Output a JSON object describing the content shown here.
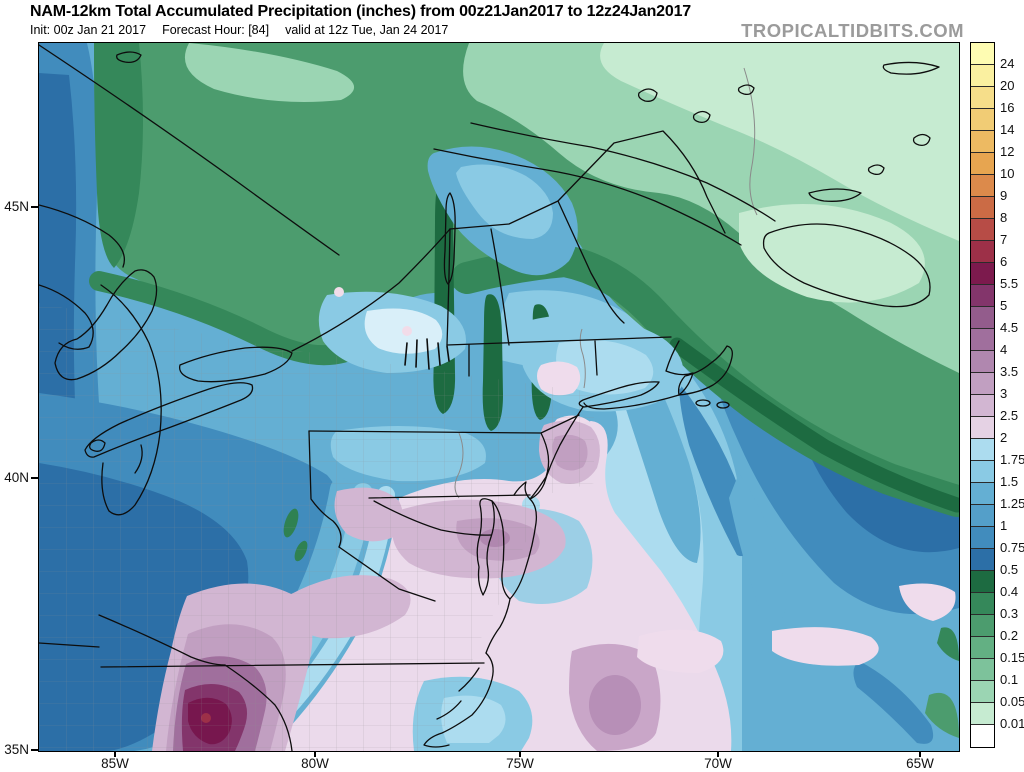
{
  "header": {
    "title": "NAM-12km Total Accumulated Precipitation (inches) from 00z21Jan2017 to 12z24Jan2017",
    "init": "Init: 00z Jan 21 2017",
    "forecast_hour": "Forecast Hour: [84]",
    "valid": "valid at 12z Tue, Jan 24 2017",
    "watermark": "TROPICALTIDBITS.COM"
  },
  "colorbar": {
    "units": "inches",
    "boundary_labels": [
      "24",
      "20",
      "16",
      "14",
      "12",
      "10",
      "9",
      "8",
      "7",
      "6",
      "5.5",
      "5",
      "4.5",
      "4",
      "3.5",
      "3",
      "2.5",
      "2",
      "1.75",
      "1.5",
      "1.25",
      "1",
      "0.75",
      "0.5",
      "0.4",
      "0.3",
      "0.2",
      "0.15",
      "0.1",
      "0.05",
      "0.01"
    ],
    "cell_colors": [
      "#FEFCB2",
      "#FAF0A0",
      "#F6DE8A",
      "#F1CC75",
      "#EDBA62",
      "#E7A550",
      "#DC8A4B",
      "#CB6B45",
      "#B74C46",
      "#9D3048",
      "#7C1A4D",
      "#83356B",
      "#935C8C",
      "#A06F9D",
      "#B087AF",
      "#C19FC1",
      "#D2B6D2",
      "#E5D2E4",
      "#ACDCEF",
      "#8ACAE4",
      "#64AFD3",
      "#549FC9",
      "#418CBD",
      "#2C6FA7",
      "#1D6B41",
      "#35885A",
      "#4C9C6E",
      "#63B083",
      "#7DC29B",
      "#9BD5B3",
      "#C6EBD1",
      "#FFFFFF"
    ]
  },
  "axes": {
    "lat": [
      "45N",
      "40N",
      "35N"
    ],
    "lon": [
      "85W",
      "80W",
      "75W",
      "70W",
      "65W"
    ]
  },
  "map_regions": {
    "ocean_medium_blue": "#64AFD3",
    "ocean_light_blue": "#8ACAE4",
    "canada_green": "#4C9C6E",
    "new_england_mint": "#C6EBD1",
    "ohio_valley_dark_blue": "#2C6FA7",
    "mid_atlantic_pink": "#EBDAEB",
    "appalachian_purple_max": "#77174E",
    "ocean_pink_patches": "#EFDCEC"
  }
}
